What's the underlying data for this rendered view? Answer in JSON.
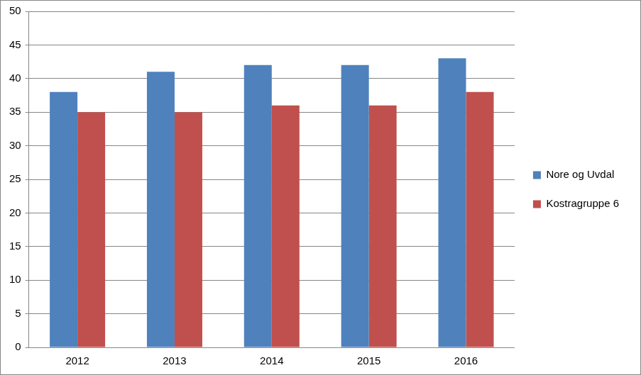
{
  "chart_data": {
    "type": "bar",
    "categories": [
      "2012",
      "2013",
      "2014",
      "2015",
      "2016"
    ],
    "series": [
      {
        "name": "Nore og Uvdal",
        "color": "#4f81bd",
        "values": [
          38,
          41,
          42,
          42,
          43
        ]
      },
      {
        "name": "Kostragruppe 6",
        "color": "#c0504d",
        "values": [
          35,
          35,
          36,
          36,
          38
        ]
      }
    ],
    "ylim": [
      0,
      50
    ],
    "yticks": [
      0,
      5,
      10,
      15,
      20,
      25,
      30,
      35,
      40,
      45,
      50
    ],
    "grid": true,
    "legend": "right"
  }
}
